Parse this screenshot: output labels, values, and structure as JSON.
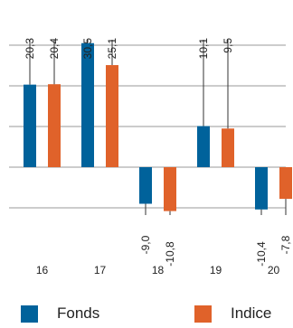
{
  "chart_data": {
    "type": "bar",
    "categories": [
      "16",
      "17",
      "18",
      "19",
      "20"
    ],
    "series": [
      {
        "name": "Fonds",
        "values": [
          20.3,
          30.5,
          -9.0,
          10.1,
          -10.4
        ],
        "labels": [
          "20,3",
          "30,5",
          "-9,0",
          "10,1",
          "-10,4"
        ]
      },
      {
        "name": "Indice",
        "values": [
          20.4,
          25.1,
          -10.8,
          9.5,
          -7.8
        ],
        "labels": [
          "20,4",
          "25,1",
          "-10,8",
          "9,5",
          "-7,8"
        ]
      }
    ],
    "ylim": [
      -10,
      30
    ],
    "gridlines": [
      -10,
      0,
      10,
      20,
      30
    ],
    "grid": true,
    "legend": "bottom",
    "title": "",
    "xlabel": "",
    "ylabel": ""
  },
  "colors": {
    "fonds": "#00629b",
    "indice": "#e0622a",
    "grid": "#9a9a9a",
    "text": "#222222"
  }
}
